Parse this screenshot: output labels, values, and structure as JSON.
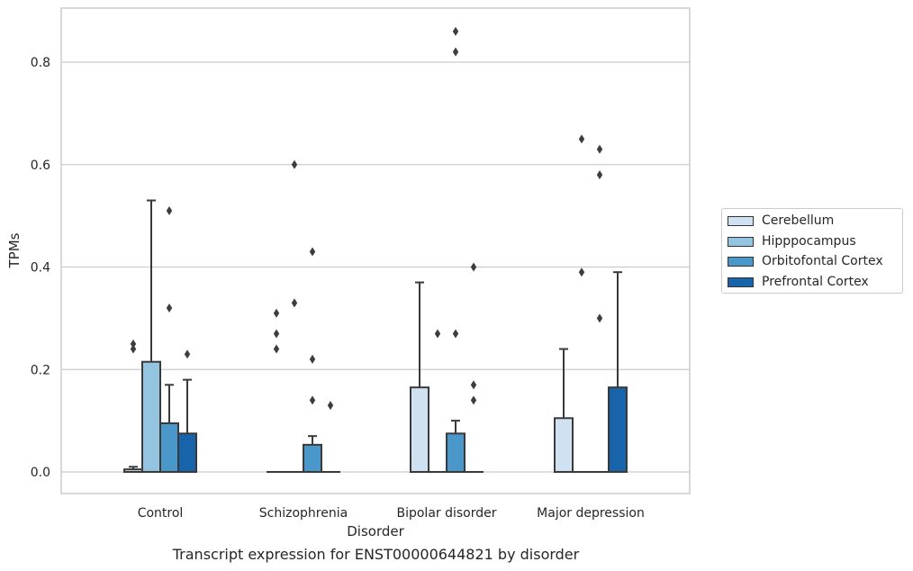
{
  "chart_data": {
    "type": "box",
    "caption": "Transcript expression for ENST00000644821 by disorder",
    "xlabel": "Disorder",
    "ylabel": "TPMs",
    "ylim": [
      -0.04,
      0.9
    ],
    "yticks": [
      "0.0",
      "0.2",
      "0.4",
      "0.6",
      "0.8"
    ],
    "grid": "horizontal",
    "legend_position": "right",
    "categories": [
      "Control",
      "Schizophrenia",
      "Bipolar disorder",
      "Major depression"
    ],
    "series": [
      {
        "name": "Cerebellum",
        "color": "#d0e1f2",
        "boxes": [
          {
            "q1": 0.0,
            "median": 0.0,
            "q3": 0.005,
            "whisker_low": 0.0,
            "whisker_high": 0.01,
            "outliers": [
              0.24,
              0.25
            ]
          },
          {
            "q1": 0.0,
            "median": 0.0,
            "q3": 0.0,
            "whisker_low": 0.0,
            "whisker_high": 0.0,
            "outliers": [
              0.24,
              0.27,
              0.31
            ]
          },
          {
            "q1": 0.0,
            "median": 0.0,
            "q3": 0.165,
            "whisker_low": 0.0,
            "whisker_high": 0.37,
            "outliers": []
          },
          {
            "q1": 0.0,
            "median": 0.0,
            "q3": 0.105,
            "whisker_low": 0.0,
            "whisker_high": 0.24,
            "outliers": []
          }
        ]
      },
      {
        "name": "Hipppocampus",
        "color": "#94c4df",
        "boxes": [
          {
            "q1": 0.0,
            "median": 0.0,
            "q3": 0.215,
            "whisker_low": 0.0,
            "whisker_high": 0.53,
            "outliers": []
          },
          {
            "q1": 0.0,
            "median": 0.0,
            "q3": 0.0,
            "whisker_low": 0.0,
            "whisker_high": 0.0,
            "outliers": [
              0.33,
              0.6
            ]
          },
          {
            "q1": 0.0,
            "median": 0.0,
            "q3": 0.0,
            "whisker_low": 0.0,
            "whisker_high": 0.0,
            "outliers": [
              0.27
            ]
          },
          {
            "q1": 0.0,
            "median": 0.0,
            "q3": 0.0,
            "whisker_low": 0.0,
            "whisker_high": 0.0,
            "outliers": [
              0.39,
              0.65
            ]
          }
        ]
      },
      {
        "name": "Orbitofontal Cortex",
        "color": "#4a98c9",
        "boxes": [
          {
            "q1": 0.0,
            "median": 0.0,
            "q3": 0.095,
            "whisker_low": 0.0,
            "whisker_high": 0.17,
            "outliers": [
              0.32,
              0.51
            ]
          },
          {
            "q1": 0.0,
            "median": 0.0,
            "q3": 0.053,
            "whisker_low": 0.0,
            "whisker_high": 0.07,
            "outliers": [
              0.14,
              0.22,
              0.43
            ]
          },
          {
            "q1": 0.0,
            "median": 0.0,
            "q3": 0.075,
            "whisker_low": 0.0,
            "whisker_high": 0.1,
            "outliers": [
              0.27,
              0.82,
              0.86
            ]
          },
          {
            "q1": 0.0,
            "median": 0.0,
            "q3": 0.0,
            "whisker_low": 0.0,
            "whisker_high": 0.0,
            "outliers": [
              0.3,
              0.58,
              0.63
            ]
          }
        ]
      },
      {
        "name": "Prefrontal Cortex",
        "color": "#1764ab",
        "boxes": [
          {
            "q1": 0.0,
            "median": 0.0,
            "q3": 0.075,
            "whisker_low": 0.0,
            "whisker_high": 0.18,
            "outliers": [
              0.23
            ]
          },
          {
            "q1": 0.0,
            "median": 0.0,
            "q3": 0.0,
            "whisker_low": 0.0,
            "whisker_high": 0.0,
            "outliers": [
              0.13
            ]
          },
          {
            "q1": 0.0,
            "median": 0.0,
            "q3": 0.0,
            "whisker_low": 0.0,
            "whisker_high": 0.0,
            "outliers": [
              0.14,
              0.17,
              0.4
            ]
          },
          {
            "q1": 0.0,
            "median": 0.0,
            "q3": 0.165,
            "whisker_low": 0.0,
            "whisker_high": 0.39,
            "outliers": []
          }
        ]
      }
    ]
  }
}
